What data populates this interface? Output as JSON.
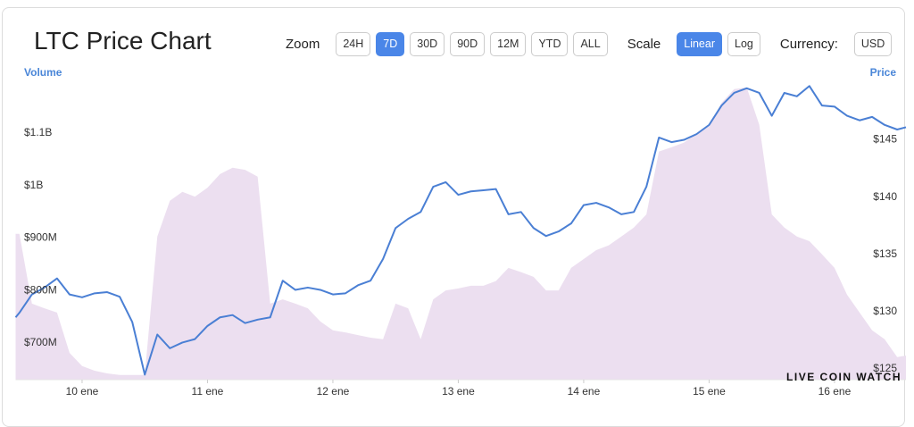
{
  "toolbar": {
    "zoom_label": "Zoom",
    "zoom_options": [
      "24H",
      "7D",
      "30D",
      "90D",
      "12M",
      "YTD",
      "ALL"
    ],
    "zoom_selected": "7D",
    "scale_label": "Scale",
    "scale_options": [
      "Linear",
      "Log"
    ],
    "scale_selected": "Linear",
    "currency_label": "Currency:",
    "currency": "USD"
  },
  "watermark": "LIVE COIN WATCH",
  "chart_data": {
    "type": "combo",
    "title": "LTC Price Chart",
    "x": [
      9.47,
      9.5,
      9.6,
      9.7,
      9.8,
      9.9,
      10,
      10.1,
      10.2,
      10.3,
      10.4,
      10.5,
      10.6,
      10.7,
      10.8,
      10.9,
      11,
      11.1,
      11.2,
      11.3,
      11.4,
      11.5,
      11.6,
      11.7,
      11.8,
      11.9,
      12,
      12.1,
      12.2,
      12.3,
      12.4,
      12.5,
      12.6,
      12.7,
      12.8,
      12.9,
      13,
      13.1,
      13.2,
      13.3,
      13.4,
      13.5,
      13.6,
      13.7,
      13.8,
      13.9,
      14,
      14.1,
      14.2,
      14.3,
      14.4,
      14.5,
      14.6,
      14.7,
      14.8,
      14.9,
      15,
      15.1,
      15.2,
      15.3,
      15.4,
      15.5,
      15.6,
      15.7,
      15.8,
      15.9,
      16,
      16.1,
      16.2,
      16.3,
      16.4,
      16.5,
      16.57
    ],
    "xlim": [
      9.47,
      16.57
    ],
    "xticks": [
      {
        "value": 10,
        "label": "10 ene"
      },
      {
        "value": 11,
        "label": "11 ene"
      },
      {
        "value": 12,
        "label": "12 ene"
      },
      {
        "value": 13,
        "label": "13 ene"
      },
      {
        "value": 14,
        "label": "14 ene"
      },
      {
        "value": 15,
        "label": "15 ene"
      },
      {
        "value": 16,
        "label": "16 ene"
      }
    ],
    "ylim": [
      630000000,
      1192000000
    ],
    "yticks": [
      {
        "value": 700000000,
        "label": "$700M"
      },
      {
        "value": 800000000,
        "label": "$800M"
      },
      {
        "value": 900000000,
        "label": "$900M"
      },
      {
        "value": 1000000000,
        "label": "$1B"
      },
      {
        "value": 1100000000,
        "label": "$1.1B"
      }
    ],
    "y2lim": [
      124.06,
      149.8
    ],
    "y2ticks": [
      {
        "value": 125,
        "label": "$125"
      },
      {
        "value": 130,
        "label": "$130"
      },
      {
        "value": 135,
        "label": "$135"
      },
      {
        "value": 140,
        "label": "$140"
      },
      {
        "value": 145,
        "label": "$145"
      }
    ],
    "grid": false,
    "series": [
      {
        "name": "Volume",
        "type": "area",
        "color": "#ecdff0",
        "axis_color": "#4a86d8",
        "values": [
          908000000,
          908000000,
          775000000,
          766000000,
          758000000,
          681000000,
          656000000,
          647000000,
          642000000,
          639000000,
          639000000,
          639000000,
          903000000,
          971000000,
          988000000,
          979000000,
          996000000,
          1022000000,
          1034000000,
          1030000000,
          1017000000,
          775000000,
          783000000,
          775000000,
          766000000,
          741000000,
          724000000,
          720000000,
          715000000,
          710000000,
          707000000,
          775000000,
          766000000,
          707000000,
          783000000,
          800000000,
          804000000,
          809000000,
          809000000,
          818000000,
          843000000,
          835000000,
          826000000,
          800000000,
          800000000,
          843000000,
          860000000,
          877000000,
          886000000,
          903000000,
          920000000,
          945000000,
          1065000000,
          1073000000,
          1082000000,
          1099000000,
          1116000000,
          1158000000,
          1184000000,
          1187000000,
          1116000000,
          945000000,
          920000000,
          903000000,
          894000000,
          869000000,
          843000000,
          792000000,
          758000000,
          724000000,
          707000000,
          673000000,
          676000000
        ]
      },
      {
        "name": "Price",
        "type": "line",
        "axis": "y2",
        "color": "#4a7fd4",
        "axis_color": "#4a86d8",
        "values": [
          129.5,
          129.9,
          131.5,
          132.1,
          132.9,
          131.5,
          131.25,
          131.6,
          131.7,
          131.3,
          129.1,
          124.5,
          128.0,
          126.8,
          127.3,
          127.6,
          128.75,
          129.5,
          129.7,
          129.0,
          129.3,
          129.5,
          132.7,
          131.9,
          132.1,
          131.9,
          131.5,
          131.6,
          132.3,
          132.7,
          134.6,
          137.3,
          138.1,
          138.7,
          140.9,
          141.3,
          140.2,
          140.5,
          140.6,
          140.7,
          138.5,
          138.7,
          137.3,
          136.6,
          137.0,
          137.7,
          139.3,
          139.5,
          139.1,
          138.5,
          138.7,
          140.9,
          145.2,
          144.8,
          145.0,
          145.5,
          146.3,
          148.0,
          149.1,
          149.5,
          149.1,
          147.1,
          149.1,
          148.8,
          149.7,
          148.0,
          147.9,
          147.1,
          146.7,
          147.0,
          146.3,
          145.9,
          146.1
        ]
      }
    ]
  }
}
